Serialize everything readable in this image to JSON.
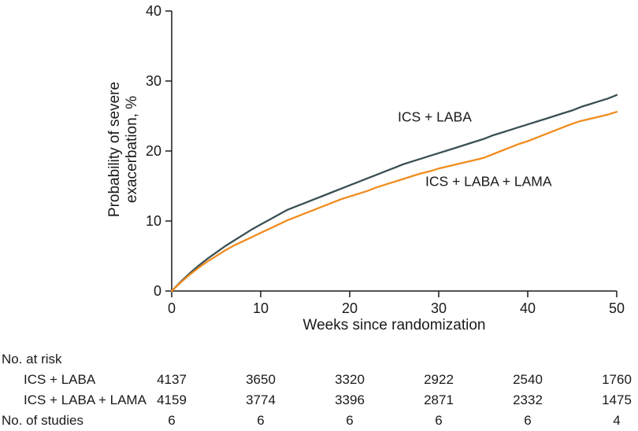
{
  "chart_data": {
    "type": "line",
    "title": "",
    "xlabel": "Weeks since randomization",
    "ylabel": "Probability of severe exacerbation, %",
    "xlim": [
      0,
      50
    ],
    "ylim": [
      0,
      40
    ],
    "xticks": [
      0,
      10,
      20,
      30,
      40,
      50
    ],
    "yticks": [
      0,
      10,
      20,
      30,
      40
    ],
    "grid": false,
    "legend": "inline-labels",
    "x": [
      0,
      1,
      2,
      3,
      4,
      5,
      6,
      7,
      8,
      9,
      10,
      11,
      12,
      13,
      14,
      15,
      16,
      17,
      18,
      19,
      20,
      21,
      22,
      23,
      24,
      25,
      26,
      27,
      28,
      29,
      30,
      31,
      32,
      33,
      34,
      35,
      36,
      37,
      38,
      39,
      40,
      41,
      42,
      43,
      44,
      45,
      46,
      47,
      48,
      49,
      50
    ],
    "series": [
      {
        "name": "ICS + LABA",
        "color": "#3a4f55",
        "values": [
          0,
          1.3,
          2.5,
          3.6,
          4.6,
          5.5,
          6.4,
          7.2,
          8.0,
          8.8,
          9.5,
          10.2,
          10.9,
          11.6,
          12.1,
          12.6,
          13.1,
          13.6,
          14.1,
          14.6,
          15.1,
          15.6,
          16.1,
          16.6,
          17.1,
          17.6,
          18.1,
          18.5,
          18.9,
          19.3,
          19.7,
          20.1,
          20.5,
          20.9,
          21.3,
          21.7,
          22.2,
          22.6,
          23.0,
          23.4,
          23.8,
          24.2,
          24.6,
          25.0,
          25.4,
          25.8,
          26.3,
          26.7,
          27.1,
          27.5,
          28.0
        ],
        "label_at": {
          "x": 25.4,
          "y": 24.2
        }
      },
      {
        "name": "ICS + LABA + LAMA",
        "color": "#f08c1e",
        "values": [
          0,
          1.2,
          2.3,
          3.3,
          4.2,
          5.0,
          5.8,
          6.5,
          7.1,
          7.7,
          8.3,
          8.9,
          9.5,
          10.1,
          10.6,
          11.1,
          11.6,
          12.1,
          12.6,
          13.1,
          13.5,
          13.9,
          14.3,
          14.8,
          15.2,
          15.6,
          16.0,
          16.4,
          16.8,
          17.1,
          17.5,
          17.8,
          18.1,
          18.4,
          18.7,
          19.0,
          19.5,
          20.0,
          20.5,
          21.0,
          21.4,
          21.9,
          22.4,
          22.9,
          23.4,
          23.9,
          24.3,
          24.6,
          24.9,
          25.2,
          25.6
        ],
        "label_at": {
          "x": 28.5,
          "y": 15.0
        }
      }
    ]
  },
  "risk_table": {
    "title": "No. at risk",
    "rows": [
      {
        "label": "ICS + LABA",
        "values": [
          "4137",
          "3650",
          "3320",
          "2922",
          "2540",
          "1760"
        ]
      },
      {
        "label": "ICS + LABA + LAMA",
        "values": [
          "4159",
          "3774",
          "3396",
          "2871",
          "2332",
          "1475"
        ]
      }
    ],
    "studies_row": {
      "label": "No. of studies",
      "values": [
        "6",
        "6",
        "6",
        "6",
        "6",
        "4"
      ]
    }
  }
}
